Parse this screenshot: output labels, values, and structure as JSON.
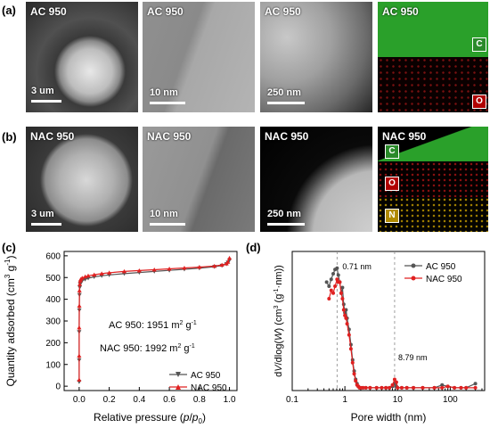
{
  "panel_labels": {
    "a": "(a)",
    "b": "(b)",
    "c": "(c)",
    "d": "(d)"
  },
  "row_a": {
    "tiles": [
      {
        "title": "AC 950",
        "scale": "3 um"
      },
      {
        "title": "AC 950",
        "scale": "10 nm"
      },
      {
        "title": "AC 950",
        "scale": "250 nm"
      },
      {
        "title": "AC 950",
        "elements": [
          "C",
          "O"
        ]
      }
    ]
  },
  "row_b": {
    "tiles": [
      {
        "title": "NAC 950",
        "scale": "3 um"
      },
      {
        "title": "NAC 950",
        "scale": "10 nm"
      },
      {
        "title": "NAC 950",
        "scale": "250 nm"
      },
      {
        "title": "NAC 950",
        "elements": [
          "C",
          "O",
          "N"
        ]
      }
    ]
  },
  "colors": {
    "ac": "#555555",
    "nac": "#e02020",
    "carbon": "#2fa02f",
    "oxygen": "#c00000",
    "nitrogen": "#c09000"
  },
  "chart_data": [
    {
      "type": "line",
      "panel": "(c)",
      "xlabel_pre": "Relative pressure (",
      "xlabel_p": "p",
      "xlabel_slash": "/",
      "xlabel_p0": "p",
      "xlabel_sub": "0",
      "xlabel_post": ")",
      "ylabel": "Quantity adsorbed (cm",
      "ylabel_sup1": "3",
      "ylabel_mid": " g",
      "ylabel_sup2": "-1",
      "ylabel_end": ")",
      "xticks": [
        "0.0",
        "0.2",
        "0.4",
        "0.6",
        "0.8",
        "1.0"
      ],
      "yticks": [
        "0",
        "100",
        "200",
        "300",
        "400",
        "500",
        "600"
      ],
      "xlim": [
        -0.1,
        1.05
      ],
      "ylim": [
        -20,
        620
      ],
      "annotations": [
        {
          "text": "AC 950: 1951 m",
          "sup1": "2",
          "mid": " g",
          "sup2": "-1"
        },
        {
          "text": "NAC 950: 1992 m",
          "sup1": "2",
          "mid": " g",
          "sup2": "-1"
        }
      ],
      "series": [
        {
          "name": "AC 950",
          "x": [
            0.0,
            0.0,
            0.0,
            0.001,
            0.002,
            0.004,
            0.007,
            0.01,
            0.02,
            0.04,
            0.06,
            0.1,
            0.15,
            0.2,
            0.3,
            0.4,
            0.5,
            0.6,
            0.7,
            0.8,
            0.9,
            0.95,
            0.98,
            0.99,
            1.0
          ],
          "y": [
            20,
            120,
            250,
            350,
            420,
            455,
            470,
            478,
            485,
            492,
            497,
            503,
            508,
            512,
            518,
            523,
            528,
            533,
            538,
            543,
            550,
            555,
            562,
            570,
            580
          ]
        },
        {
          "name": "NAC 950",
          "x": [
            0.0,
            0.0,
            0.0,
            0.001,
            0.002,
            0.004,
            0.007,
            0.01,
            0.02,
            0.04,
            0.06,
            0.1,
            0.15,
            0.2,
            0.3,
            0.4,
            0.5,
            0.6,
            0.7,
            0.8,
            0.9,
            0.95,
            0.98,
            0.99,
            1.0
          ],
          "y": [
            30,
            140,
            270,
            370,
            440,
            470,
            485,
            492,
            498,
            504,
            508,
            513,
            518,
            522,
            528,
            532,
            536,
            540,
            544,
            548,
            553,
            558,
            564,
            572,
            590
          ]
        }
      ],
      "legend": "bottom-right"
    },
    {
      "type": "line",
      "panel": "(d)",
      "xscale": "log",
      "xlabel": "Pore width (nm)",
      "ylabel_pre": "d",
      "ylabel_v": "V",
      "ylabel_mid": "/dlog(",
      "ylabel_w": "W",
      "ylabel_post": ") (cm",
      "ylabel_sup1": "3",
      "ylabel_mid2": " (g",
      "ylabel_sup2": "-1",
      "ylabel_end": "·nm))",
      "xticks": [
        "0.1",
        "1",
        "10",
        "100"
      ],
      "xlim": [
        0.1,
        450
      ],
      "ylim": [
        0,
        1
      ],
      "annotations": [
        {
          "text": "0.71 nm",
          "x": 0.71
        },
        {
          "text": "8.79 nm",
          "x": 8.79
        }
      ],
      "series": [
        {
          "name": "AC 950",
          "x": [
            0.45,
            0.5,
            0.55,
            0.6,
            0.65,
            0.71,
            0.75,
            0.8,
            0.85,
            0.9,
            0.95,
            1.0,
            1.05,
            1.1,
            1.2,
            1.3,
            1.4,
            1.5,
            1.6,
            1.7,
            1.8,
            1.9,
            2.0,
            2.2,
            2.5,
            3,
            4,
            5,
            6,
            7,
            8,
            8.79,
            9.5,
            10,
            12,
            15,
            20,
            30,
            50,
            70,
            90,
            120,
            160,
            200,
            300
          ],
          "y": [
            0.78,
            0.75,
            0.8,
            0.84,
            0.87,
            0.88,
            0.83,
            0.78,
            0.7,
            0.74,
            0.62,
            0.56,
            0.58,
            0.52,
            0.44,
            0.33,
            0.22,
            0.14,
            0.08,
            0.05,
            0.03,
            0.02,
            0.02,
            0.02,
            0.02,
            0.02,
            0.02,
            0.02,
            0.02,
            0.02,
            0.03,
            0.05,
            0.03,
            0.02,
            0.02,
            0.02,
            0.02,
            0.02,
            0.02,
            0.04,
            0.03,
            0.02,
            0.02,
            0.02,
            0.05
          ]
        },
        {
          "name": "NAC 950",
          "x": [
            0.5,
            0.55,
            0.6,
            0.65,
            0.71,
            0.75,
            0.8,
            0.85,
            0.9,
            0.95,
            1.0,
            1.05,
            1.1,
            1.2,
            1.3,
            1.4,
            1.5,
            1.6,
            1.7,
            1.8,
            1.9,
            2.0,
            2.2,
            2.5,
            3,
            4,
            5,
            6,
            7,
            8,
            8.79,
            9.5,
            10,
            12,
            15,
            20,
            30,
            50,
            70,
            90,
            120,
            160,
            200,
            300
          ],
          "y": [
            0.66,
            0.72,
            0.7,
            0.75,
            0.8,
            0.78,
            0.78,
            0.7,
            0.66,
            0.58,
            0.54,
            0.52,
            0.48,
            0.4,
            0.3,
            0.2,
            0.12,
            0.07,
            0.04,
            0.03,
            0.02,
            0.02,
            0.02,
            0.02,
            0.02,
            0.02,
            0.02,
            0.02,
            0.02,
            0.04,
            0.08,
            0.06,
            0.02,
            0.02,
            0.02,
            0.02,
            0.02,
            0.02,
            0.02,
            0.03,
            0.02,
            0.02,
            0.02,
            0.02
          ]
        }
      ],
      "legend": "top-right"
    }
  ]
}
